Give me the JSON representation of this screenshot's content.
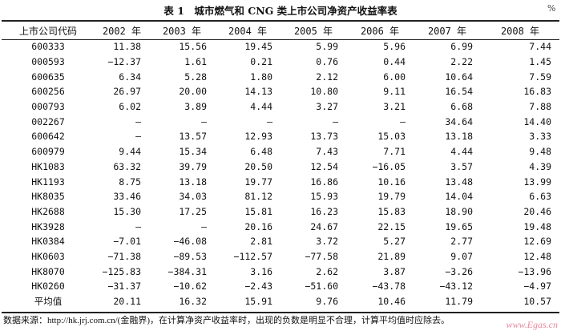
{
  "title": "表 1　城市燃气和 CNG 类上市公司净资产收益率表",
  "unit": "%",
  "columns": [
    "上市公司代码",
    "2002 年",
    "2003 年",
    "2004 年",
    "2005 年",
    "2006 年",
    "2007 年",
    "2008 年"
  ],
  "rows": [
    [
      "600333",
      "11.38",
      "15.56",
      "19.45",
      "5.99",
      "5.96",
      "6.99",
      "7.44"
    ],
    [
      "000593",
      "−12.37",
      "1.61",
      "0.21",
      "0.76",
      "0.44",
      "2.22",
      "1.45"
    ],
    [
      "600635",
      "6.34",
      "5.28",
      "1.80",
      "2.12",
      "6.00",
      "10.64",
      "7.59"
    ],
    [
      "600256",
      "26.97",
      "20.00",
      "14.13",
      "10.80",
      "9.11",
      "16.54",
      "16.83"
    ],
    [
      "000793",
      "6.02",
      "3.89",
      "4.44",
      "3.27",
      "3.21",
      "6.68",
      "7.88"
    ],
    [
      "002267",
      "—",
      "—",
      "—",
      "—",
      "—",
      "34.64",
      "14.40"
    ],
    [
      "600642",
      "—",
      "13.57",
      "12.93",
      "13.73",
      "15.03",
      "13.18",
      "3.33"
    ],
    [
      "600979",
      "9.44",
      "15.34",
      "6.48",
      "7.43",
      "7.71",
      "4.44",
      "9.48"
    ],
    [
      "HK1083",
      "63.32",
      "39.79",
      "20.50",
      "12.54",
      "−16.05",
      "3.57",
      "4.39"
    ],
    [
      "HK1193",
      "8.75",
      "13.18",
      "19.77",
      "16.86",
      "10.16",
      "13.48",
      "13.99"
    ],
    [
      "HK8035",
      "33.46",
      "34.03",
      "81.12",
      "15.93",
      "19.79",
      "14.04",
      "6.63"
    ],
    [
      "HK2688",
      "15.30",
      "17.25",
      "15.81",
      "16.23",
      "15.83",
      "18.90",
      "20.46"
    ],
    [
      "HK3928",
      "—",
      "—",
      "20.16",
      "24.67",
      "22.15",
      "19.65",
      "19.48"
    ],
    [
      "HK0384",
      "−7.01",
      "−46.08",
      "2.81",
      "3.72",
      "5.27",
      "2.77",
      "12.69"
    ],
    [
      "HK0603",
      "−71.38",
      "−89.53",
      "−112.57",
      "−77.58",
      "21.89",
      "9.07",
      "12.48"
    ],
    [
      "HK8070",
      "−125.83",
      "−384.31",
      "3.16",
      "2.62",
      "3.87",
      "−3.26",
      "−13.96"
    ],
    [
      "HK0260",
      "−31.37",
      "−10.62",
      "−2.43",
      "−51.60",
      "−43.78",
      "−43.12",
      "−4.97"
    ],
    [
      "平均值",
      "20.11",
      "16.32",
      "15.91",
      "9.76",
      "10.46",
      "11.79",
      "10.57"
    ]
  ],
  "footnote": "数据来源：http://hk.jrj.com.cn/(金融界)，在计算净资产收益率时，出现的负数是明显不合理，计算平均值时应除去。",
  "watermark": "www.Egas.cn"
}
